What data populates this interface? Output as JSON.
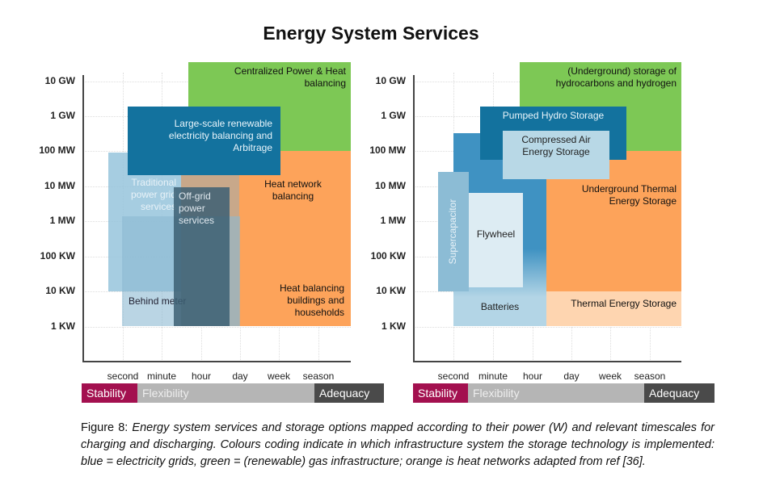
{
  "title": "Energy System Services",
  "y_ticks": [
    "10 GW",
    "1 GW",
    "100 MW",
    "10 MW",
    "1 MW",
    "100 KW",
    "10 KW",
    "1 KW"
  ],
  "x_ticks": [
    "second",
    "minute",
    "hour",
    "day",
    "week",
    "season"
  ],
  "bands": {
    "stability": "Stability",
    "flexibility": "Flexibility",
    "adequacy": "Adequacy"
  },
  "left": {
    "centralized": "Centralized Power & Heat balancing",
    "large_scale": "Large-scale renewable electricity balancing and Arbitrage",
    "traditional": "Traditional power grid services",
    "offgrid": "Off-grid power services",
    "behind": "Behind meter",
    "heat_network": "Heat network balancing",
    "heat_buildings": "Heat balancing buildings and households"
  },
  "right": {
    "underground_gas": "(Underground) storage of hydrocarbons and hydrogen",
    "pumped": "Pumped Hydro Storage",
    "caes": "Compressed Air Energy Storage",
    "supercap": "Supercapacitor",
    "flywheel": "Flywheel",
    "batteries": "Batteries",
    "utes": "Underground Thermal Energy Storage",
    "tes": "Thermal Energy Storage"
  },
  "colors": {
    "green": "#7dc855",
    "orange": "#fda35a",
    "dark_blue": "#13729e",
    "stability": "#a3104f",
    "flexibility": "#b5b5b5",
    "adequacy": "#4a4a4a"
  },
  "caption": {
    "label": "Figure 8:",
    "text": "Energy system services and storage options mapped according to their power (W) and relevant timescales for charging and discharging. Colours coding indicate in which infrastructure system the storage technology is implemented: blue = electricity grids, green = (renewable) gas infrastructure; orange is heat networks adapted from ref",
    "ref": "[36]."
  }
}
